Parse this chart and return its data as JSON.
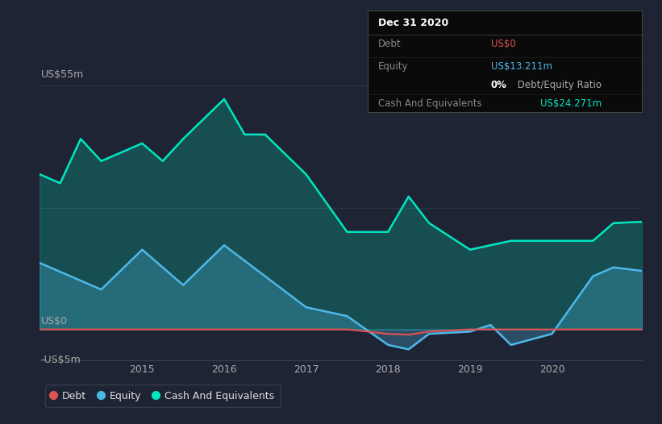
{
  "bg_color": "#1e2433",
  "plot_bg_color": "#1e2433",
  "grid_color": "#2e3545",
  "ylabel_top": "US$55m",
  "ylabel_zero": "US$0",
  "ylabel_neg": "-US$5m",
  "x_ticks": [
    "2015",
    "2016",
    "2017",
    "2018",
    "2019",
    "2020"
  ],
  "legend_items": [
    "Debt",
    "Equity",
    "Cash And Equivalents"
  ],
  "legend_colors": [
    "#e05252",
    "#4db8e8",
    "#00e5c0"
  ],
  "tooltip_title": "Dec 31 2020",
  "debt_x": [
    2013.75,
    2014.0,
    2014.5,
    2015.0,
    2015.5,
    2016.0,
    2016.5,
    2017.0,
    2017.5,
    2018.0,
    2018.25,
    2018.5,
    2019.0,
    2019.5,
    2020.0,
    2020.5,
    2020.75,
    2021.1
  ],
  "debt_y": [
    0,
    0,
    0,
    0,
    0,
    0,
    0,
    0,
    0,
    -1.0,
    -1.2,
    -0.5,
    0,
    0,
    0,
    0,
    0,
    0
  ],
  "equity_x": [
    2013.75,
    2014.0,
    2014.5,
    2015.0,
    2015.5,
    2016.0,
    2016.5,
    2017.0,
    2017.5,
    2018.0,
    2018.25,
    2018.5,
    2019.0,
    2019.25,
    2019.5,
    2020.0,
    2020.5,
    2020.75,
    2021.1
  ],
  "equity_y": [
    15,
    13,
    9,
    18,
    10,
    19,
    12,
    5,
    3,
    -3.5,
    -4.5,
    -1.0,
    -0.5,
    1.0,
    -3.5,
    -1.0,
    12,
    14,
    13.2
  ],
  "cash_x": [
    2013.75,
    2014.0,
    2014.25,
    2014.5,
    2015.0,
    2015.25,
    2015.5,
    2016.0,
    2016.25,
    2016.5,
    2017.0,
    2017.5,
    2018.0,
    2018.25,
    2018.5,
    2019.0,
    2019.5,
    2020.0,
    2020.5,
    2020.75,
    2021.1
  ],
  "cash_y": [
    35,
    33,
    43,
    38,
    42,
    38,
    43,
    52,
    44,
    44,
    35,
    22,
    22,
    30,
    24,
    18,
    20,
    20,
    20,
    24,
    24.3
  ],
  "ylim": [
    -7,
    60
  ],
  "xlim": [
    2013.75,
    2021.1
  ]
}
